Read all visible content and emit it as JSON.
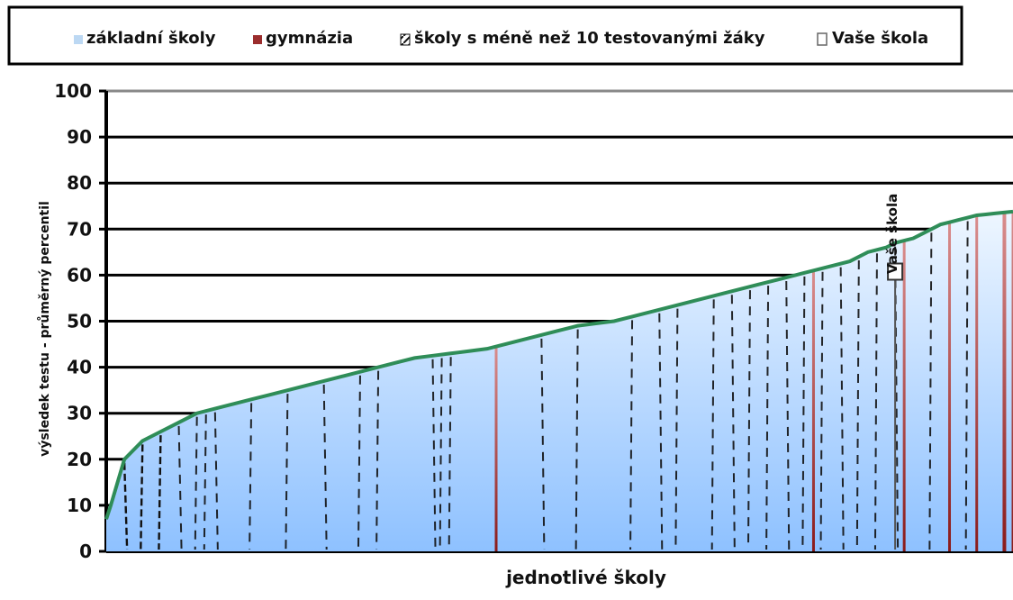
{
  "chart_data": {
    "type": "area",
    "title": "",
    "xlabel": "jednotlivé školy",
    "ylabel": "výsledek testu - průměrný percentil",
    "ylim": [
      0,
      100
    ],
    "yticks": [
      0,
      10,
      20,
      30,
      40,
      50,
      60,
      70,
      80,
      90,
      100
    ],
    "grid": true,
    "legend_position": "top",
    "legend": [
      {
        "name": "základní školy",
        "color": "#bcd8f3",
        "style": "solid-light-blue"
      },
      {
        "name": "gymnázia",
        "color": "#9b2d2d",
        "style": "solid-dark-red"
      },
      {
        "name": "školy s méně než 10 testovanými žáky",
        "color": "#111111",
        "style": "hatched"
      },
      {
        "name": "Vaše škola",
        "color": "#555555",
        "style": "white-icon"
      }
    ],
    "series": [
      {
        "name": "základní školy",
        "x": [
          0,
          0.5,
          2,
          4,
          6,
          8,
          10,
          12,
          14,
          16,
          18,
          20,
          22,
          24,
          26,
          28,
          30,
          32,
          34,
          36,
          38,
          40,
          42,
          44,
          46,
          48,
          50,
          52,
          54,
          56,
          58,
          60,
          62,
          64,
          66,
          68,
          70,
          72,
          74,
          76,
          78,
          80,
          82,
          84,
          86,
          87,
          88,
          89,
          90,
          91,
          92,
          93,
          94,
          95,
          96,
          97,
          98,
          99,
          100
        ],
        "values": [
          7,
          10,
          20,
          24,
          26,
          28,
          30,
          31,
          32,
          33,
          34,
          35,
          36,
          37,
          38,
          39,
          40,
          41,
          42,
          42.5,
          43,
          43.5,
          44,
          45,
          46,
          47,
          48,
          49,
          49.5,
          50,
          51,
          52,
          53,
          54,
          55,
          56,
          57,
          58,
          59,
          60,
          61,
          62,
          63,
          65,
          66,
          67,
          67.5,
          68,
          69,
          70,
          71,
          71.5,
          72,
          72.5,
          73,
          73.2,
          73.4,
          73.6,
          73.8
        ]
      }
    ],
    "gymnasia_positions": [
      43,
      78,
      88,
      93,
      96,
      99,
      100
    ],
    "hatched_lines": [
      2,
      4,
      6,
      8,
      10,
      11,
      12,
      16,
      20,
      24,
      28,
      30,
      36,
      37,
      38,
      48,
      52,
      58,
      61,
      63,
      67,
      69,
      71,
      73,
      75,
      77,
      79,
      81,
      83,
      85,
      87,
      91,
      95
    ],
    "your_school": {
      "label": "Vaše škola",
      "x": 87,
      "value": 59
    }
  }
}
